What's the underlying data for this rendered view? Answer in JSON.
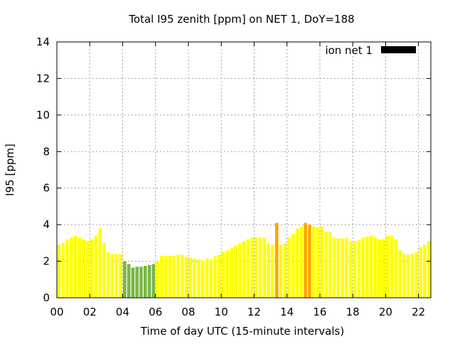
{
  "chart_data": {
    "type": "bar",
    "title": "Total I95 zenith [ppm] on NET 1, DoY=188",
    "xlabel": "Time of day UTC (15-minute intervals)",
    "ylabel": "I95 [ppm]",
    "xlim": [
      0,
      22.75
    ],
    "ylim": [
      0,
      14
    ],
    "grid": true,
    "legend_position": "top-right",
    "legend": [
      {
        "name": "ion net 1",
        "color": "#000000"
      }
    ],
    "x_ticks": [
      {
        "value": 0,
        "label": "00"
      },
      {
        "value": 2,
        "label": "02"
      },
      {
        "value": 4,
        "label": "04"
      },
      {
        "value": 6,
        "label": "06"
      },
      {
        "value": 8,
        "label": "08"
      },
      {
        "value": 10,
        "label": "10"
      },
      {
        "value": 12,
        "label": "12"
      },
      {
        "value": 14,
        "label": "14"
      },
      {
        "value": 16,
        "label": "16"
      },
      {
        "value": 18,
        "label": "18"
      },
      {
        "value": 20,
        "label": "20"
      },
      {
        "value": 22,
        "label": "22"
      }
    ],
    "y_ticks": [
      {
        "value": 0,
        "label": "0"
      },
      {
        "value": 2,
        "label": "2"
      },
      {
        "value": 4,
        "label": "4"
      },
      {
        "value": 6,
        "label": "6"
      },
      {
        "value": 8,
        "label": "8"
      },
      {
        "value": 10,
        "label": "10"
      },
      {
        "value": 12,
        "label": "12"
      },
      {
        "value": 14,
        "label": "14"
      }
    ],
    "colors": {
      "yellow": "#ffff00",
      "orange": "#ffa500",
      "green": "#7ab648"
    },
    "bar_width_hours": 0.2,
    "bars": [
      {
        "x": 0.125,
        "value": 2.9,
        "color": "yellow"
      },
      {
        "x": 0.375,
        "value": 3.0,
        "color": "yellow"
      },
      {
        "x": 0.625,
        "value": 3.2,
        "color": "yellow"
      },
      {
        "x": 0.875,
        "value": 3.3,
        "color": "yellow"
      },
      {
        "x": 1.125,
        "value": 3.4,
        "color": "yellow"
      },
      {
        "x": 1.375,
        "value": 3.3,
        "color": "yellow"
      },
      {
        "x": 1.625,
        "value": 3.2,
        "color": "yellow"
      },
      {
        "x": 1.875,
        "value": 3.1,
        "color": "yellow"
      },
      {
        "x": 2.125,
        "value": 3.2,
        "color": "yellow"
      },
      {
        "x": 2.375,
        "value": 3.4,
        "color": "yellow"
      },
      {
        "x": 2.625,
        "value": 3.8,
        "color": "yellow"
      },
      {
        "x": 2.875,
        "value": 3.0,
        "color": "yellow"
      },
      {
        "x": 3.125,
        "value": 2.5,
        "color": "yellow"
      },
      {
        "x": 3.375,
        "value": 2.4,
        "color": "yellow"
      },
      {
        "x": 3.625,
        "value": 2.4,
        "color": "yellow"
      },
      {
        "x": 3.875,
        "value": 2.4,
        "color": "yellow"
      },
      {
        "x": 4.125,
        "value": 2.0,
        "color": "green"
      },
      {
        "x": 4.375,
        "value": 1.85,
        "color": "green"
      },
      {
        "x": 4.625,
        "value": 1.65,
        "color": "green"
      },
      {
        "x": 4.875,
        "value": 1.7,
        "color": "green"
      },
      {
        "x": 5.125,
        "value": 1.7,
        "color": "green"
      },
      {
        "x": 5.375,
        "value": 1.75,
        "color": "green"
      },
      {
        "x": 5.625,
        "value": 1.8,
        "color": "green"
      },
      {
        "x": 5.875,
        "value": 1.85,
        "color": "green"
      },
      {
        "x": 6.125,
        "value": 2.0,
        "color": "yellow"
      },
      {
        "x": 6.375,
        "value": 2.3,
        "color": "yellow"
      },
      {
        "x": 6.625,
        "value": 2.3,
        "color": "yellow"
      },
      {
        "x": 6.875,
        "value": 2.3,
        "color": "yellow"
      },
      {
        "x": 7.125,
        "value": 2.3,
        "color": "yellow"
      },
      {
        "x": 7.375,
        "value": 2.35,
        "color": "yellow"
      },
      {
        "x": 7.625,
        "value": 2.35,
        "color": "yellow"
      },
      {
        "x": 7.875,
        "value": 2.25,
        "color": "yellow"
      },
      {
        "x": 8.125,
        "value": 2.2,
        "color": "yellow"
      },
      {
        "x": 8.375,
        "value": 2.15,
        "color": "yellow"
      },
      {
        "x": 8.625,
        "value": 2.1,
        "color": "yellow"
      },
      {
        "x": 8.875,
        "value": 2.05,
        "color": "yellow"
      },
      {
        "x": 9.125,
        "value": 2.15,
        "color": "yellow"
      },
      {
        "x": 9.375,
        "value": 2.1,
        "color": "yellow"
      },
      {
        "x": 9.625,
        "value": 2.3,
        "color": "yellow"
      },
      {
        "x": 9.875,
        "value": 2.35,
        "color": "yellow"
      },
      {
        "x": 10.125,
        "value": 2.5,
        "color": "yellow"
      },
      {
        "x": 10.375,
        "value": 2.6,
        "color": "yellow"
      },
      {
        "x": 10.625,
        "value": 2.7,
        "color": "yellow"
      },
      {
        "x": 10.875,
        "value": 2.85,
        "color": "yellow"
      },
      {
        "x": 11.125,
        "value": 3.0,
        "color": "yellow"
      },
      {
        "x": 11.375,
        "value": 3.1,
        "color": "yellow"
      },
      {
        "x": 11.625,
        "value": 3.2,
        "color": "yellow"
      },
      {
        "x": 11.875,
        "value": 3.3,
        "color": "yellow"
      },
      {
        "x": 12.125,
        "value": 3.3,
        "color": "yellow"
      },
      {
        "x": 12.375,
        "value": 3.3,
        "color": "yellow"
      },
      {
        "x": 12.625,
        "value": 3.3,
        "color": "yellow"
      },
      {
        "x": 12.875,
        "value": 3.0,
        "color": "yellow"
      },
      {
        "x": 13.125,
        "value": 2.9,
        "color": "yellow"
      },
      {
        "x": 13.375,
        "value": 4.1,
        "color": "orange"
      },
      {
        "x": 13.625,
        "value": 2.9,
        "color": "yellow"
      },
      {
        "x": 13.875,
        "value": 3.0,
        "color": "yellow"
      },
      {
        "x": 14.125,
        "value": 3.3,
        "color": "yellow"
      },
      {
        "x": 14.375,
        "value": 3.5,
        "color": "yellow"
      },
      {
        "x": 14.625,
        "value": 3.8,
        "color": "yellow"
      },
      {
        "x": 14.875,
        "value": 3.9,
        "color": "yellow"
      },
      {
        "x": 15.125,
        "value": 4.1,
        "color": "orange"
      },
      {
        "x": 15.375,
        "value": 4.0,
        "color": "orange"
      },
      {
        "x": 15.625,
        "value": 3.9,
        "color": "yellow"
      },
      {
        "x": 15.875,
        "value": 3.85,
        "color": "yellow"
      },
      {
        "x": 16.125,
        "value": 3.9,
        "color": "yellow"
      },
      {
        "x": 16.375,
        "value": 3.6,
        "color": "yellow"
      },
      {
        "x": 16.625,
        "value": 3.6,
        "color": "yellow"
      },
      {
        "x": 16.875,
        "value": 3.3,
        "color": "yellow"
      },
      {
        "x": 17.125,
        "value": 3.25,
        "color": "yellow"
      },
      {
        "x": 17.375,
        "value": 3.25,
        "color": "yellow"
      },
      {
        "x": 17.625,
        "value": 3.3,
        "color": "yellow"
      },
      {
        "x": 17.875,
        "value": 3.1,
        "color": "yellow"
      },
      {
        "x": 18.125,
        "value": 3.1,
        "color": "yellow"
      },
      {
        "x": 18.375,
        "value": 3.15,
        "color": "yellow"
      },
      {
        "x": 18.625,
        "value": 3.3,
        "color": "yellow"
      },
      {
        "x": 18.875,
        "value": 3.35,
        "color": "yellow"
      },
      {
        "x": 19.125,
        "value": 3.4,
        "color": "yellow"
      },
      {
        "x": 19.375,
        "value": 3.3,
        "color": "yellow"
      },
      {
        "x": 19.625,
        "value": 3.2,
        "color": "yellow"
      },
      {
        "x": 19.875,
        "value": 3.2,
        "color": "yellow"
      },
      {
        "x": 20.125,
        "value": 3.4,
        "color": "yellow"
      },
      {
        "x": 20.375,
        "value": 3.4,
        "color": "yellow"
      },
      {
        "x": 20.625,
        "value": 3.2,
        "color": "yellow"
      },
      {
        "x": 20.875,
        "value": 2.6,
        "color": "yellow"
      },
      {
        "x": 21.125,
        "value": 2.4,
        "color": "yellow"
      },
      {
        "x": 21.375,
        "value": 2.35,
        "color": "yellow"
      },
      {
        "x": 21.625,
        "value": 2.4,
        "color": "yellow"
      },
      {
        "x": 21.875,
        "value": 2.5,
        "color": "yellow"
      },
      {
        "x": 22.125,
        "value": 2.8,
        "color": "yellow"
      },
      {
        "x": 22.375,
        "value": 2.9,
        "color": "yellow"
      },
      {
        "x": 22.625,
        "value": 3.1,
        "color": "yellow"
      }
    ]
  }
}
